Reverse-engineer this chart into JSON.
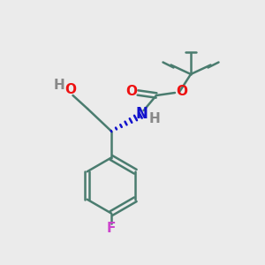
{
  "background_color": "#ebebeb",
  "bond_color": "#4a7c6f",
  "bond_width": 1.8,
  "red": "#ee1111",
  "blue": "#1111cc",
  "magenta": "#cc44cc",
  "gray": "#888888",
  "figsize": [
    3.0,
    3.0
  ],
  "dpi": 100,
  "xlim": [
    0,
    10
  ],
  "ylim": [
    0,
    10
  ]
}
